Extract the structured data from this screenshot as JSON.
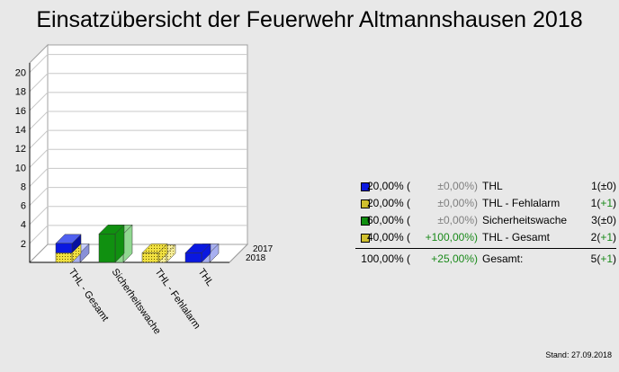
{
  "title": "Einsatzübersicht der Feuerwehr Altmannshausen 2018",
  "stand": "Stand: 27.09.2018",
  "colors": {
    "thl": "#0a18e0",
    "sicherheitswache": "#109010",
    "fehlalarm": "#f0e040",
    "thl_gesamt": "#f0e040"
  },
  "chart_data": {
    "type": "bar",
    "style": "3d-stacked-depth",
    "categories": [
      "THL - Gesamt",
      "Sicherheitswache",
      "THL - Fehlalarm",
      "THL"
    ],
    "depth_labels": [
      "2017",
      "2018"
    ],
    "series": [
      {
        "name": "2018",
        "values": [
          2,
          3,
          1,
          1
        ]
      },
      {
        "name": "2017",
        "values": [
          1,
          3,
          0,
          1
        ]
      }
    ],
    "stacked_parts_2018": {
      "THL - Gesamt": {
        "THL": 1,
        "THL - Fehlalarm": 1
      }
    },
    "yticks": [
      2,
      4,
      6,
      8,
      10,
      12,
      14,
      16,
      18,
      20
    ],
    "ylim": [
      0,
      21
    ],
    "grid": true
  },
  "legend": {
    "rows": [
      {
        "color": "#0a18e0",
        "hatch": false,
        "pct": "20,00% (",
        "chg": "±0,00%)",
        "chg_sign": "n",
        "name": "THL",
        "count": "1",
        "diff": "±0"
      },
      {
        "color": "#f0e040",
        "hatch": true,
        "pct": "20,00% (",
        "chg": "±0,00%)",
        "chg_sign": "n",
        "name": "THL - Fehlalarm",
        "count": "1",
        "diff": "+1"
      },
      {
        "color": "#109010",
        "hatch": false,
        "pct": "60,00% (",
        "chg": "±0,00%)",
        "chg_sign": "n",
        "name": "Sicherheitswache",
        "count": "3",
        "diff": "±0"
      },
      {
        "color": "#f0e040",
        "hatch": true,
        "pct": "40,00% (",
        "chg": "+100,00%)",
        "chg_sign": "p",
        "name": "THL - Gesamt",
        "count": "2",
        "diff": "+1"
      }
    ],
    "total": {
      "pct": "100,00% (",
      "chg": "+25,00%)",
      "name": "Gesamt:",
      "count": "5",
      "diff": "+1"
    }
  }
}
